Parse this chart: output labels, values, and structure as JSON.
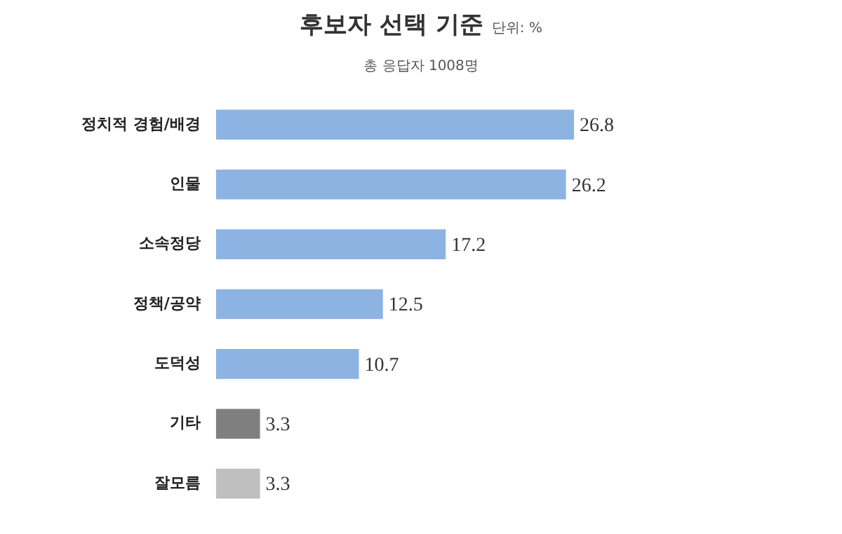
{
  "chart_data": {
    "type": "bar",
    "orientation": "horizontal",
    "title": "후보자 선택 기준",
    "subtitle": "총 응답자 1008명",
    "annotations": [
      "단위: %"
    ],
    "categories": [
      "정치적 경험/배경",
      "인물",
      "소속정당",
      "정책/공약",
      "도덕성",
      "기타",
      "잘모름"
    ],
    "values": [
      26.8,
      26.2,
      17.2,
      12.5,
      10.7,
      3.3,
      3.3
    ],
    "colors": [
      "#8db3e2",
      "#8db3e2",
      "#8db3e2",
      "#8db3e2",
      "#8db3e2",
      "#7f7f7f",
      "#bfbfbf"
    ],
    "data_labels": true
  }
}
